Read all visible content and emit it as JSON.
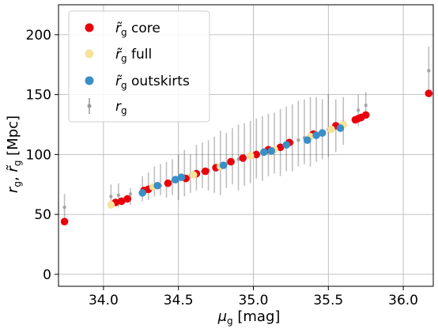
{
  "chart_data": {
    "type": "scatter",
    "xlabel": "μg [mag]",
    "ylabel": "rg, r̃g [Mpc]",
    "xlim": [
      33.7,
      36.2
    ],
    "ylim": [
      -10,
      225
    ],
    "xticks": [
      34.0,
      34.5,
      35.0,
      35.5,
      36.0
    ],
    "xtick_labels": [
      "34.0",
      "34.5",
      "35.0",
      "35.5",
      "36.0"
    ],
    "yticks": [
      0,
      50,
      100,
      150,
      200
    ],
    "ytick_labels": [
      "0",
      "50",
      "100",
      "150",
      "200"
    ],
    "grid": true,
    "legend_position": "top-left",
    "series": [
      {
        "name": "r̃g core",
        "color": "#e8000b",
        "points": [
          [
            33.74,
            44
          ],
          [
            34.08,
            60
          ],
          [
            34.12,
            61
          ],
          [
            34.16,
            63
          ],
          [
            34.27,
            70
          ],
          [
            34.3,
            71
          ],
          [
            34.43,
            76
          ],
          [
            34.55,
            80
          ],
          [
            34.62,
            84
          ],
          [
            34.68,
            86
          ],
          [
            34.75,
            89
          ],
          [
            34.85,
            94
          ],
          [
            34.93,
            97
          ],
          [
            35.02,
            100
          ],
          [
            35.1,
            104
          ],
          [
            35.18,
            106
          ],
          [
            35.24,
            110
          ],
          [
            35.4,
            117
          ],
          [
            35.55,
            124
          ],
          [
            35.68,
            129
          ],
          [
            35.7,
            130
          ],
          [
            35.72,
            131
          ],
          [
            35.75,
            133
          ],
          [
            36.17,
            151
          ]
        ]
      },
      {
        "name": "r̃g full",
        "color": "#f7e29c",
        "points": [
          [
            34.05,
            58
          ],
          [
            34.33,
            73
          ],
          [
            34.6,
            83
          ],
          [
            34.78,
            90
          ],
          [
            34.98,
            99
          ],
          [
            35.14,
            104
          ],
          [
            35.38,
            115
          ],
          [
            35.52,
            121
          ],
          [
            35.6,
            125
          ]
        ]
      },
      {
        "name": "r̃g outskirts",
        "color": "#3a8fc7",
        "points": [
          [
            34.26,
            68
          ],
          [
            34.36,
            74
          ],
          [
            34.48,
            79
          ],
          [
            34.52,
            81
          ],
          [
            34.8,
            91
          ],
          [
            35.07,
            102
          ],
          [
            35.12,
            103
          ],
          [
            35.22,
            108
          ],
          [
            35.36,
            112
          ],
          [
            35.42,
            116
          ],
          [
            35.46,
            118
          ],
          [
            35.58,
            122
          ]
        ]
      },
      {
        "name": "rg",
        "color": "#999999",
        "points": [
          [
            33.74,
            56,
            47,
            67
          ],
          [
            34.05,
            65,
            55,
            75
          ],
          [
            34.1,
            66,
            56,
            76
          ],
          [
            34.18,
            67,
            58,
            72
          ],
          [
            34.26,
            70,
            61,
            82
          ],
          [
            34.3,
            71,
            62,
            85
          ],
          [
            34.34,
            73,
            65,
            90
          ],
          [
            34.38,
            74,
            66,
            92
          ],
          [
            34.42,
            76,
            64,
            94
          ],
          [
            34.46,
            78,
            66,
            96
          ],
          [
            34.5,
            79,
            62,
            100
          ],
          [
            34.54,
            81,
            65,
            104
          ],
          [
            34.58,
            83,
            68,
            100
          ],
          [
            34.62,
            84,
            70,
            108
          ],
          [
            34.66,
            86,
            72,
            110
          ],
          [
            34.7,
            87,
            70,
            112
          ],
          [
            34.74,
            88,
            68,
            115
          ],
          [
            34.78,
            90,
            66,
            120
          ],
          [
            34.82,
            92,
            72,
            118
          ],
          [
            34.86,
            94,
            75,
            122
          ],
          [
            34.9,
            96,
            70,
            125
          ],
          [
            34.94,
            97,
            74,
            126
          ],
          [
            34.98,
            99,
            76,
            128
          ],
          [
            35.02,
            100,
            80,
            130
          ],
          [
            35.06,
            102,
            78,
            132
          ],
          [
            35.1,
            104,
            82,
            134
          ],
          [
            35.14,
            105,
            84,
            135
          ],
          [
            35.18,
            107,
            82,
            138
          ],
          [
            35.22,
            109,
            86,
            140
          ],
          [
            35.26,
            110,
            86,
            142
          ],
          [
            35.3,
            112,
            90,
            145
          ],
          [
            35.34,
            114,
            92,
            146
          ],
          [
            35.38,
            116,
            90,
            148
          ],
          [
            35.42,
            118,
            94,
            148
          ],
          [
            35.46,
            119,
            96,
            146
          ],
          [
            35.5,
            121,
            98,
            150
          ],
          [
            35.55,
            124,
            102,
            146
          ],
          [
            35.6,
            127,
            108,
            148
          ],
          [
            35.7,
            137,
            124,
            150
          ],
          [
            35.75,
            141,
            130,
            152
          ],
          [
            36.17,
            170,
            150,
            190
          ]
        ]
      }
    ]
  },
  "legend": {
    "items": [
      {
        "marker_color": "#e8000b",
        "base": "r̃",
        "sub": "g",
        "suffix": " core"
      },
      {
        "marker_color": "#f7e29c",
        "base": "r̃",
        "sub": "g",
        "suffix": " full"
      },
      {
        "marker_color": "#3a8fc7",
        "base": "r̃",
        "sub": "g",
        "suffix": " outskirts"
      },
      {
        "marker_color": "#999999",
        "base": "r",
        "sub": "g",
        "suffix": ""
      }
    ]
  },
  "axis_labels": {
    "x_main": "μ",
    "x_sub": "g",
    "x_tail": " [mag]",
    "y_r": "r",
    "y_sub1": "g",
    "y_sep": ", ",
    "y_rt": "r̃",
    "y_sub2": "g",
    "y_tail": " [Mpc]"
  }
}
